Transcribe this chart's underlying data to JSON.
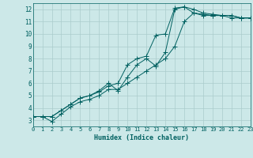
{
  "xlabel": "Humidex (Indice chaleur)",
  "ylabel": "",
  "bg_color": "#cce8e8",
  "grid_color": "#aacccc",
  "line_color": "#006060",
  "xlim": [
    0,
    23
  ],
  "ylim": [
    2.5,
    12.5
  ],
  "xticks": [
    0,
    1,
    2,
    3,
    4,
    5,
    6,
    7,
    8,
    9,
    10,
    11,
    12,
    13,
    14,
    15,
    16,
    17,
    18,
    19,
    20,
    21,
    22,
    23
  ],
  "yticks": [
    3,
    4,
    5,
    6,
    7,
    8,
    9,
    10,
    11,
    12
  ],
  "line1_x": [
    0,
    1,
    2,
    3,
    4,
    5,
    6,
    7,
    8,
    9,
    10,
    11,
    12,
    13,
    14,
    15,
    16,
    17,
    18,
    19,
    20,
    21,
    22,
    23
  ],
  "line1_y": [
    3.3,
    3.3,
    2.9,
    3.5,
    4.1,
    4.5,
    4.7,
    5.0,
    5.5,
    5.5,
    6.0,
    6.5,
    7.0,
    7.5,
    8.0,
    9.0,
    11.0,
    11.7,
    11.5,
    11.5,
    11.5,
    11.3,
    11.3,
    11.3
  ],
  "line2_x": [
    0,
    1,
    2,
    3,
    4,
    5,
    6,
    7,
    8,
    9,
    10,
    11,
    12,
    13,
    14,
    15,
    16,
    17,
    18,
    19,
    20,
    21,
    22,
    23
  ],
  "line2_y": [
    3.3,
    3.3,
    3.3,
    3.8,
    4.3,
    4.8,
    5.0,
    5.3,
    5.8,
    6.0,
    7.5,
    8.0,
    8.2,
    9.9,
    10.0,
    12.1,
    12.2,
    12.0,
    11.7,
    11.6,
    11.5,
    11.5,
    11.3,
    11.3
  ],
  "line3_x": [
    0,
    1,
    2,
    3,
    4,
    5,
    6,
    7,
    8,
    9,
    10,
    11,
    12,
    13,
    14,
    15,
    16,
    17,
    18,
    19,
    20,
    21,
    22,
    23
  ],
  "line3_y": [
    3.3,
    3.3,
    3.3,
    3.8,
    4.3,
    4.8,
    5.0,
    5.4,
    6.0,
    5.4,
    6.5,
    7.5,
    8.0,
    7.4,
    8.5,
    12.0,
    12.2,
    11.7,
    11.6,
    11.5,
    11.5,
    11.5,
    11.3,
    11.3
  ]
}
